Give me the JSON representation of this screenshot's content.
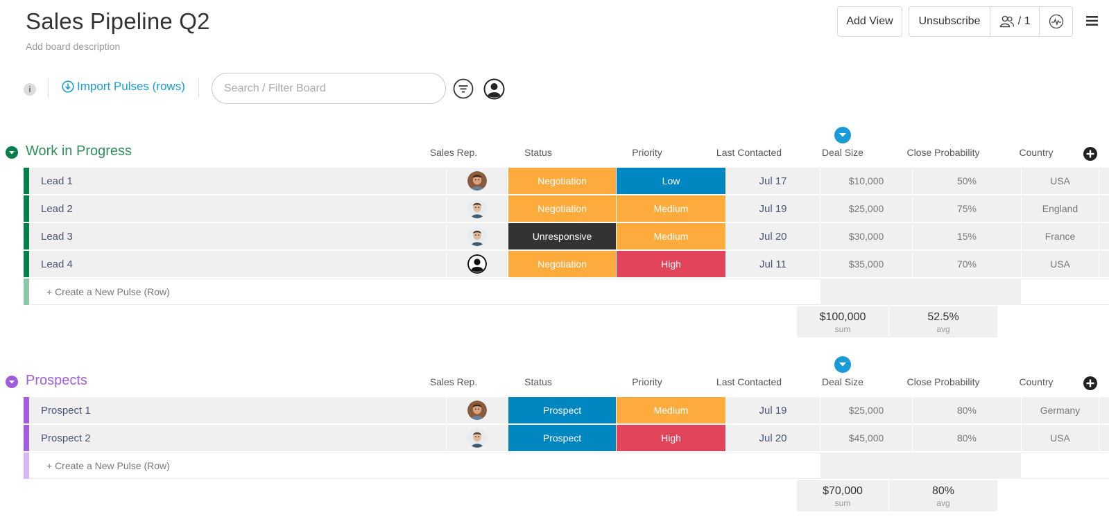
{
  "board": {
    "title": "Sales Pipeline Q2",
    "description": "Add board description"
  },
  "header": {
    "add_view": "Add View",
    "unsubscribe": "Unsubscribe",
    "members_count": "/ 1"
  },
  "toolbar": {
    "info_label": "i",
    "import_label": "Import Pulses (rows)",
    "search_placeholder": "Search / Filter Board"
  },
  "columns": {
    "sales_rep": "Sales Rep.",
    "status": "Status",
    "priority": "Priority",
    "last_contacted": "Last Contacted",
    "deal_size": "Deal Size",
    "close_probability": "Close Probability",
    "country": "Country"
  },
  "colors": {
    "negotiation": "#fdab3d",
    "unresponsive": "#333333",
    "prospect": "#0086c0",
    "low": "#0086c0",
    "medium": "#fdab3d",
    "high": "#e2445c",
    "group1": "#037f4c",
    "group1_title": "#2f8f59",
    "group2": "#a25ddc",
    "group2_title": "#a25ddc"
  },
  "groups": [
    {
      "title": "Work in Progress",
      "rows": [
        {
          "name": "Lead 1",
          "rep": "avatar-photo-a",
          "status": "Negotiation",
          "priority": "Low",
          "date": "Jul 17",
          "deal": "$10,000",
          "prob": "50%",
          "country": "USA"
        },
        {
          "name": "Lead 2",
          "rep": "avatar-photo-b",
          "status": "Negotiation",
          "priority": "Medium",
          "date": "Jul 19",
          "deal": "$25,000",
          "prob": "75%",
          "country": "England"
        },
        {
          "name": "Lead 3",
          "rep": "avatar-photo-b",
          "status": "Unresponsive",
          "priority": "Medium",
          "date": "Jul 20",
          "deal": "$30,000",
          "prob": "15%",
          "country": "France"
        },
        {
          "name": "Lead 4",
          "rep": "avatar-placeholder",
          "status": "Negotiation",
          "priority": "High",
          "date": "Jul 11",
          "deal": "$35,000",
          "prob": "70%",
          "country": "USA"
        }
      ],
      "create_label": "+ Create a New Pulse (Row)",
      "summary": {
        "deal": "$100,000",
        "deal_label": "sum",
        "prob": "52.5%",
        "prob_label": "avg"
      }
    },
    {
      "title": "Prospects",
      "rows": [
        {
          "name": "Prospect 1",
          "rep": "avatar-photo-a",
          "status": "Prospect",
          "priority": "Medium",
          "date": "Jul 19",
          "deal": "$25,000",
          "prob": "80%",
          "country": "Germany"
        },
        {
          "name": "Prospect 2",
          "rep": "avatar-photo-b",
          "status": "Prospect",
          "priority": "High",
          "date": "Jul 20",
          "deal": "$45,000",
          "prob": "80%",
          "country": "USA"
        }
      ],
      "create_label": "+ Create a New Pulse (Row)",
      "summary": {
        "deal": "$70,000",
        "deal_label": "sum",
        "prob": "80%",
        "prob_label": "avg"
      }
    }
  ]
}
